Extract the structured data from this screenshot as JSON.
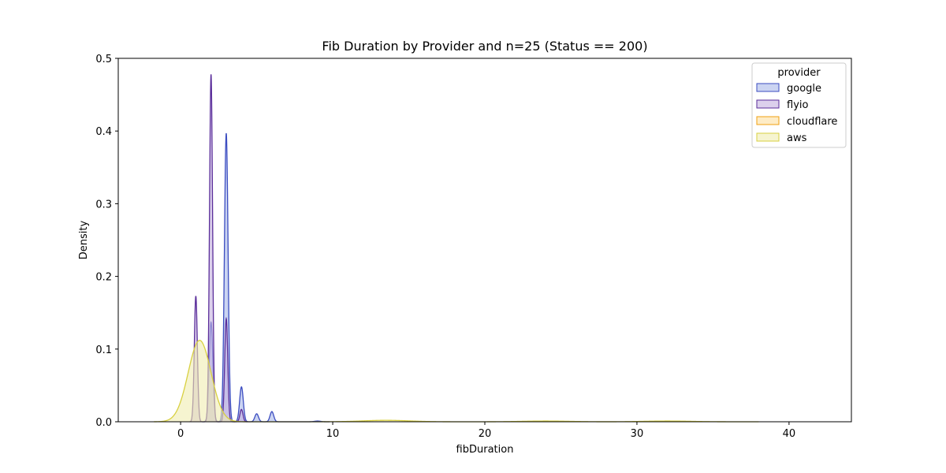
{
  "chart_data": {
    "type": "area",
    "title": "Fib Duration by Provider and n=25 (Status == 200)",
    "xlabel": "fibDuration",
    "ylabel": "Density",
    "xlim": [
      -4.1,
      44.1
    ],
    "ylim": [
      0,
      0.5
    ],
    "x_ticks": [
      0,
      10,
      20,
      30,
      40
    ],
    "x_tick_labels": [
      "0",
      "10",
      "20",
      "30",
      "40"
    ],
    "y_ticks": [
      0,
      0.1,
      0.2,
      0.3,
      0.4,
      0.5
    ],
    "y_tick_labels": [
      "0.0",
      "0.1",
      "0.2",
      "0.3",
      "0.4",
      "0.5"
    ],
    "grid": false,
    "legend": {
      "title": "provider",
      "placement": "top-right"
    },
    "series": [
      {
        "name": "google",
        "color": "#3b4cc0",
        "fill": "#a9b8ea",
        "peaks": [
          {
            "x": 2,
            "height": 0.137,
            "width": 0.12
          },
          {
            "x": 3,
            "height": 0.397,
            "width": 0.12
          },
          {
            "x": 4,
            "height": 0.048,
            "width": 0.12
          },
          {
            "x": 5,
            "height": 0.011,
            "width": 0.12
          },
          {
            "x": 6,
            "height": 0.014,
            "width": 0.12
          },
          {
            "x": 9,
            "height": 0.001,
            "width": 0.2
          }
        ]
      },
      {
        "name": "flyio",
        "color": "#5a2d9a",
        "fill": "#c4b0e0",
        "peaks": [
          {
            "x": 1,
            "height": 0.173,
            "width": 0.1
          },
          {
            "x": 2,
            "height": 0.478,
            "width": 0.1
          },
          {
            "x": 3,
            "height": 0.142,
            "width": 0.1
          },
          {
            "x": 4,
            "height": 0.017,
            "width": 0.1
          }
        ]
      },
      {
        "name": "cloudflare",
        "color": "#f0a010",
        "fill": "#fde0a0",
        "peaks": []
      },
      {
        "name": "aws",
        "color": "#d8d040",
        "fill": "#f0ecb0",
        "peaks": [
          {
            "x": 1.25,
            "height": 0.112,
            "width": 0.75
          },
          {
            "x": 13.5,
            "height": 0.002,
            "width": 1.5
          },
          {
            "x": 24,
            "height": 0.001,
            "width": 1.5
          },
          {
            "x": 32,
            "height": 0.001,
            "width": 1.5
          }
        ]
      }
    ]
  }
}
